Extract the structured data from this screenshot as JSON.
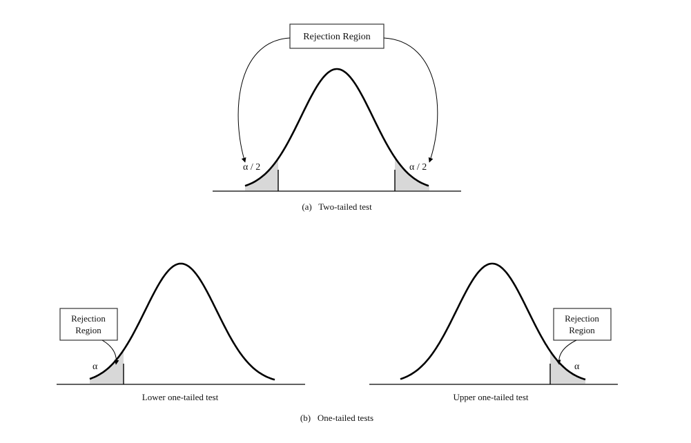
{
  "colors": {
    "ink": "#000000",
    "tail_fill": "#d8d8d8",
    "box_stroke": "#333333"
  },
  "panel_a": {
    "caption": "(a)   Two-tailed test",
    "box_label": "Rejection Region",
    "left_tail_label": "α / 2",
    "right_tail_label": "α / 2"
  },
  "panel_b": {
    "caption": "(b)   One-tailed tests",
    "lower": {
      "box_label_line1": "Rejection",
      "box_label_line2": "Region",
      "tail_label": "α",
      "axis_label": "Lower one-tailed test"
    },
    "upper": {
      "box_label_line1": "Rejection",
      "box_label_line2": "Region",
      "tail_label": "α",
      "axis_label": "Upper one-tailed test"
    }
  }
}
